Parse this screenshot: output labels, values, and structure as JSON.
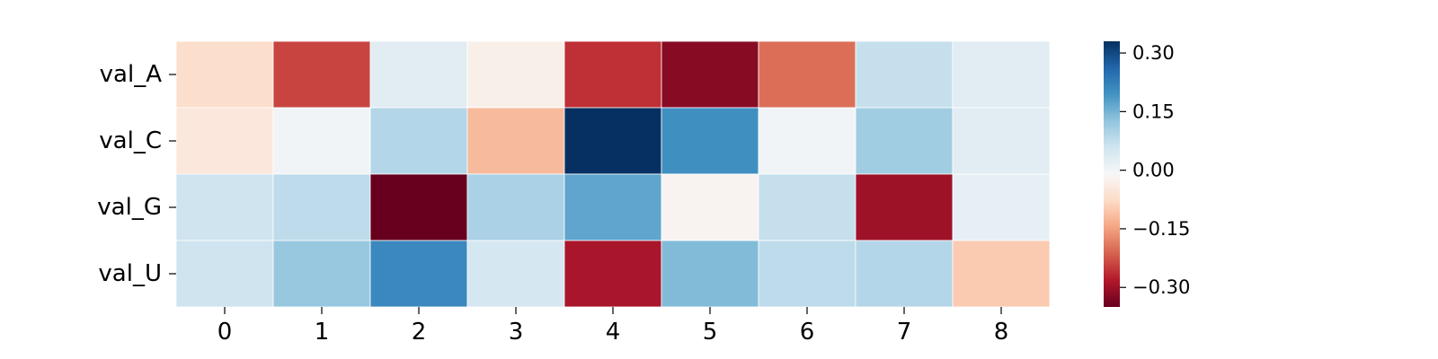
{
  "chart_data": {
    "type": "heatmap",
    "title": "",
    "xlabel": "",
    "ylabel": "",
    "x_categories": [
      "0",
      "1",
      "2",
      "3",
      "4",
      "5",
      "6",
      "7",
      "8"
    ],
    "y_categories": [
      "val_A",
      "val_C",
      "val_G",
      "val_U"
    ],
    "values": [
      [
        -0.07,
        -0.24,
        0.03,
        -0.03,
        -0.26,
        -0.32,
        -0.2,
        0.07,
        0.03
      ],
      [
        -0.05,
        0.0,
        0.09,
        -0.12,
        0.34,
        0.2,
        0.0,
        0.11,
        0.03
      ],
      [
        0.06,
        0.08,
        -0.35,
        0.1,
        0.17,
        -0.02,
        0.07,
        -0.3,
        0.02
      ],
      [
        0.06,
        0.12,
        0.21,
        0.05,
        -0.29,
        0.14,
        0.08,
        0.09,
        -0.1
      ]
    ],
    "colormap": "RdBu",
    "vmin": -0.35,
    "vmax": 0.33,
    "colorbar_ticks": [
      0.3,
      0.15,
      0.0,
      -0.15,
      -0.3
    ],
    "colorbar_tick_labels": [
      "0.30",
      "0.15",
      "0.00",
      "−0.15",
      "−0.30"
    ],
    "grid": false,
    "cell_border_color": "#ffffff"
  }
}
